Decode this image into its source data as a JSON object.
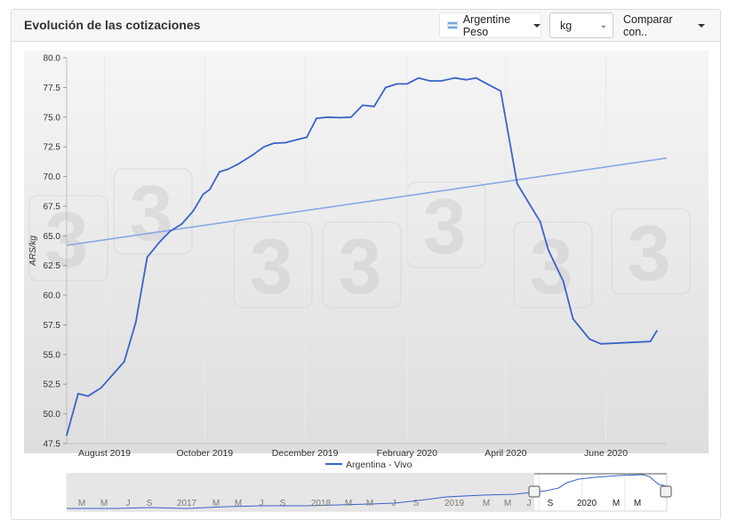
{
  "header": {
    "title": "Evolución de las cotizaciones",
    "currency_label": "Argentine Peso",
    "unit_value": "kg",
    "compare_label": "Comparar con.."
  },
  "colors": {
    "series": "#3a64c8",
    "trend": "#8aa8e4",
    "plot_bg_top": "#f5f5f5",
    "plot_bg_bottom": "#dedede",
    "navigator_series": "#3a64c8"
  },
  "chart_data": {
    "type": "line",
    "ylabel": "ARS/kg",
    "xlabel": "",
    "ylim": [
      47.5,
      80.0
    ],
    "y_ticks": [
      "47.5",
      "50.0",
      "52.5",
      "55.0",
      "57.5",
      "60.0",
      "62.5",
      "65.0",
      "67.5",
      "70.0",
      "72.5",
      "75.0",
      "77.5",
      "80.0"
    ],
    "x_range": [
      "2019-07-09",
      "2020-07-08"
    ],
    "x_ticks": [
      {
        "date": "2019-08-01",
        "label": "August 2019"
      },
      {
        "date": "2019-10-01",
        "label": "October 2019"
      },
      {
        "date": "2019-12-01",
        "label": "December 2019"
      },
      {
        "date": "2020-02-01",
        "label": "February 2020"
      },
      {
        "date": "2020-04-01",
        "label": "April 2020"
      },
      {
        "date": "2020-06-01",
        "label": "June 2020"
      }
    ],
    "legend": "bottom-center",
    "grid": "vertical-lines",
    "series": [
      {
        "name": "Argentina - Vivo",
        "points": [
          [
            "2019-07-09",
            48.2
          ],
          [
            "2019-07-16",
            51.7
          ],
          [
            "2019-07-22",
            51.5
          ],
          [
            "2019-07-30",
            52.2
          ],
          [
            "2019-08-06",
            53.3
          ],
          [
            "2019-08-13",
            54.4
          ],
          [
            "2019-08-20",
            57.7
          ],
          [
            "2019-08-27",
            63.2
          ],
          [
            "2019-09-03",
            64.4
          ],
          [
            "2019-09-10",
            65.4
          ],
          [
            "2019-09-17",
            66.0
          ],
          [
            "2019-09-24",
            67.1
          ],
          [
            "2019-09-30",
            68.5
          ],
          [
            "2019-10-04",
            68.9
          ],
          [
            "2019-10-10",
            70.4
          ],
          [
            "2019-10-15",
            70.6
          ],
          [
            "2019-10-22",
            71.1
          ],
          [
            "2019-10-30",
            71.8
          ],
          [
            "2019-11-06",
            72.5
          ],
          [
            "2019-11-12",
            72.8
          ],
          [
            "2019-11-19",
            72.85
          ],
          [
            "2019-11-26",
            73.1
          ],
          [
            "2019-12-02",
            73.3
          ],
          [
            "2019-12-08",
            74.9
          ],
          [
            "2019-12-15",
            75.0
          ],
          [
            "2019-12-22",
            74.95
          ],
          [
            "2019-12-29",
            75.0
          ],
          [
            "2020-01-05",
            76.0
          ],
          [
            "2020-01-12",
            75.9
          ],
          [
            "2020-01-19",
            77.5
          ],
          [
            "2020-01-26",
            77.8
          ],
          [
            "2020-02-01",
            77.8
          ],
          [
            "2020-02-08",
            78.3
          ],
          [
            "2020-02-15",
            78.05
          ],
          [
            "2020-02-22",
            78.05
          ],
          [
            "2020-03-01",
            78.3
          ],
          [
            "2020-03-08",
            78.15
          ],
          [
            "2020-03-14",
            78.3
          ],
          [
            "2020-03-22",
            77.7
          ],
          [
            "2020-03-29",
            77.2
          ],
          [
            "2020-04-08",
            69.4
          ],
          [
            "2020-04-22",
            66.2
          ],
          [
            "2020-04-27",
            63.8
          ],
          [
            "2020-05-06",
            61.2
          ],
          [
            "2020-05-12",
            58.0
          ],
          [
            "2020-05-22",
            56.3
          ],
          [
            "2020-05-29",
            55.9
          ],
          [
            "2020-06-28",
            56.1
          ],
          [
            "2020-07-02",
            57.0
          ]
        ]
      },
      {
        "role": "trendline",
        "points": [
          [
            "2019-07-09",
            64.2
          ],
          [
            "2020-07-08",
            71.55
          ]
        ]
      }
    ],
    "navigator": {
      "labels": [
        "M",
        "M",
        "J",
        "S",
        "2017",
        "M",
        "M",
        "J",
        "S",
        "2018",
        "M",
        "M",
        "J",
        "S",
        "2019",
        "M",
        "M",
        "J",
        "S",
        "2020",
        "M",
        "M"
      ]
    }
  }
}
